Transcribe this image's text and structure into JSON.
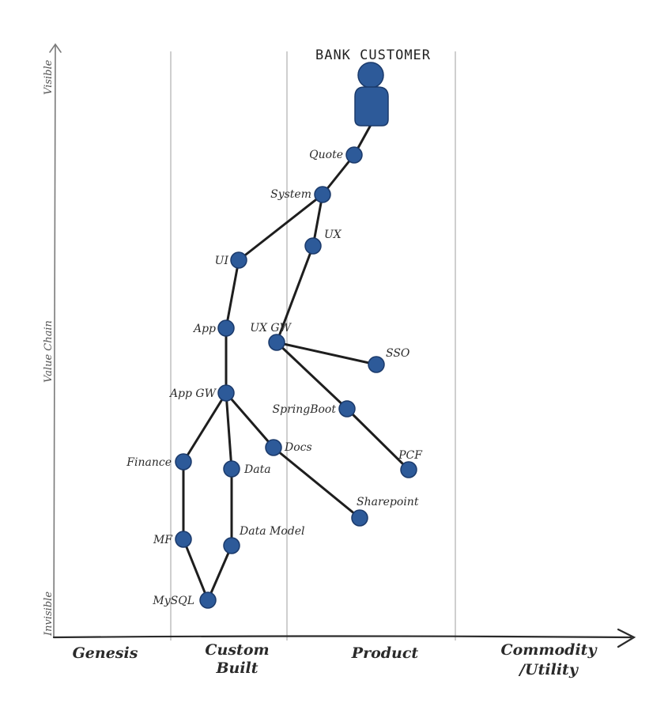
{
  "title": "BANK CUSTOMER",
  "y_axis": {
    "top": "Visible",
    "middle": "Value Chain",
    "bottom": "Invisible"
  },
  "stages": [
    {
      "line1": "Genesis",
      "line2": ""
    },
    {
      "line1": "Custom",
      "line2": "Built"
    },
    {
      "line1": "Product",
      "line2": ""
    },
    {
      "line1": "Commodity",
      "line2": "/Utility"
    }
  ],
  "colors": {
    "node": "#2d5a99",
    "edge": "#1e1e1e",
    "grid": "#cfcfcf"
  },
  "nodes": [
    {
      "id": "quote",
      "label": "Quote"
    },
    {
      "id": "system",
      "label": "System"
    },
    {
      "id": "ui",
      "label": "UI"
    },
    {
      "id": "ux",
      "label": "UX"
    },
    {
      "id": "app",
      "label": "App"
    },
    {
      "id": "uxgw",
      "label": "UX GW"
    },
    {
      "id": "sso",
      "label": "SSO"
    },
    {
      "id": "appgw",
      "label": "App GW"
    },
    {
      "id": "springboot",
      "label": "SpringBoot"
    },
    {
      "id": "finance",
      "label": "Finance"
    },
    {
      "id": "data",
      "label": "Data"
    },
    {
      "id": "docs",
      "label": "Docs"
    },
    {
      "id": "pcf",
      "label": "PCF"
    },
    {
      "id": "sharepoint",
      "label": "Sharepoint"
    },
    {
      "id": "mf",
      "label": "MF"
    },
    {
      "id": "datamodel",
      "label": "Data Model"
    },
    {
      "id": "mysql",
      "label": "MySQL"
    }
  ],
  "edges": [
    [
      "customer",
      "quote"
    ],
    [
      "quote",
      "system"
    ],
    [
      "system",
      "ui"
    ],
    [
      "system",
      "ux"
    ],
    [
      "ui",
      "app"
    ],
    [
      "ux",
      "uxgw"
    ],
    [
      "app",
      "appgw"
    ],
    [
      "uxgw",
      "sso"
    ],
    [
      "uxgw",
      "springboot"
    ],
    [
      "springboot",
      "pcf"
    ],
    [
      "appgw",
      "finance"
    ],
    [
      "appgw",
      "data"
    ],
    [
      "appgw",
      "docs"
    ],
    [
      "docs",
      "sharepoint"
    ],
    [
      "finance",
      "mf"
    ],
    [
      "data",
      "datamodel"
    ],
    [
      "mf",
      "mysql"
    ],
    [
      "datamodel",
      "mysql"
    ]
  ]
}
